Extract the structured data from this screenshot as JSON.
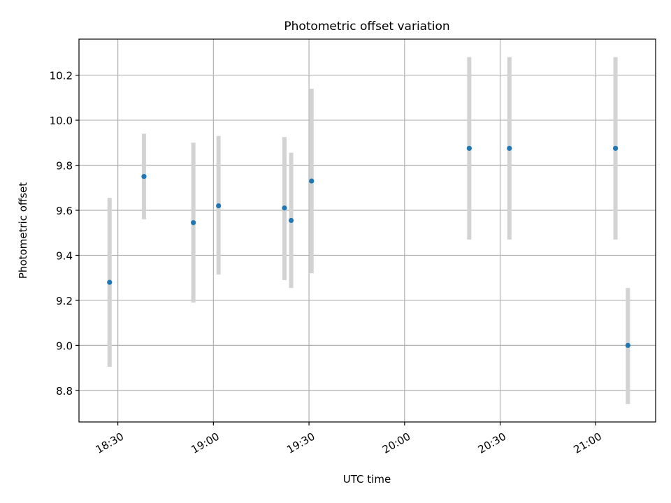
{
  "chart_data": {
    "type": "scatter",
    "title": "Photometric offset variation",
    "xlabel": "UTC time",
    "ylabel": "Photometric offset",
    "x_tick_labels": [
      "18:30",
      "19:00",
      "19:30",
      "20:00",
      "20:30",
      "21:00"
    ],
    "x_tick_minutes": [
      1110,
      1140,
      1170,
      1200,
      1230,
      1260
    ],
    "xlim_minutes": [
      1097.8,
      1278.8
    ],
    "ylim": [
      8.66,
      10.36
    ],
    "y_ticks": [
      8.8,
      9.0,
      9.2,
      9.4,
      9.6,
      9.8,
      10.0,
      10.2
    ],
    "y_tick_labels": [
      "8.8",
      "9.0",
      "9.2",
      "9.4",
      "9.6",
      "9.8",
      "10.0",
      "10.2"
    ],
    "grid": true,
    "series": [
      {
        "x_minutes": [
          1107.4,
          1118.2,
          1133.7,
          1141.6,
          1162.3,
          1164.4,
          1170.8,
          1220.3,
          1232.9,
          1266.2,
          1270.1
        ],
        "x_labels": [
          "18:27",
          "18:38",
          "18:54",
          "19:02",
          "19:22",
          "19:24",
          "19:31",
          "20:20",
          "20:33",
          "21:06",
          "21:10"
        ],
        "y": [
          9.28,
          9.75,
          9.545,
          9.62,
          9.61,
          9.555,
          9.73,
          9.875,
          9.875,
          9.875,
          9.0
        ],
        "yerr_low": [
          8.905,
          9.56,
          9.19,
          9.315,
          9.29,
          9.255,
          9.32,
          9.47,
          9.47,
          9.47,
          8.74
        ],
        "yerr_high": [
          9.655,
          9.94,
          9.9,
          9.93,
          9.925,
          9.855,
          10.14,
          10.28,
          10.28,
          10.28,
          9.255
        ]
      }
    ],
    "colors": {
      "marker": "#1f77b4",
      "errorbar": "#d3d3d3",
      "grid": "#b0b0b0",
      "axes": "#000000"
    }
  }
}
